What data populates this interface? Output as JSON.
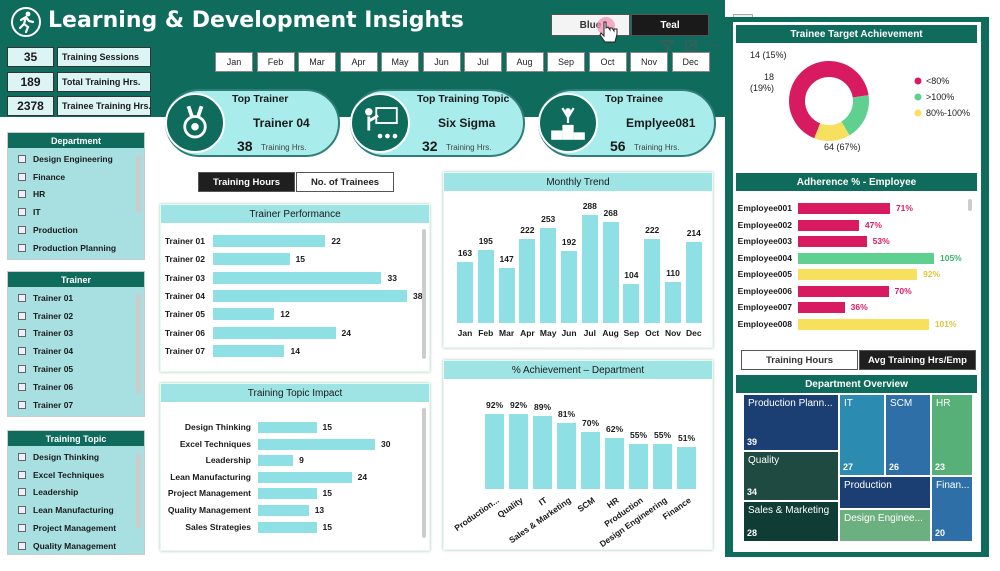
{
  "header": {
    "title": "Learning & Development Insights",
    "kpis": [
      {
        "value": "35",
        "label": "Training Sessions"
      },
      {
        "value": "189",
        "label": "Total Training Hrs."
      },
      {
        "value": "2378",
        "label": "Trainee Training Hrs."
      }
    ],
    "months": [
      "Jan",
      "Feb",
      "Mar",
      "Apr",
      "May",
      "Jun",
      "Jul",
      "Aug",
      "Sep",
      "Oct",
      "Nov",
      "Dec"
    ],
    "theme_buttons": {
      "blue": "Blue",
      "teal": "Teal"
    }
  },
  "top_cards": [
    {
      "title": "Top Trainer",
      "name": "Trainer 04",
      "value": "38",
      "sub": "Training Hrs.",
      "icon": "medal-icon"
    },
    {
      "title": "Top Training Topic",
      "name": "Six Sigma",
      "value": "32",
      "sub": "Training Hrs.",
      "icon": "presentation-icon"
    },
    {
      "title": "Top Trainee",
      "name": "Emplyee081",
      "value": "56",
      "sub": "Training Hrs.",
      "icon": "podium-icon"
    }
  ],
  "slicers": {
    "department": {
      "title": "Department",
      "items": [
        "Design Engineering",
        "Finance",
        "HR",
        "IT",
        "Production",
        "Production Planning"
      ]
    },
    "trainer": {
      "title": "Trainer",
      "items": [
        "Trainer 01",
        "Trainer 02",
        "Trainer 03",
        "Trainer 04",
        "Trainer 05",
        "Trainer 06",
        "Trainer 07"
      ]
    },
    "topic": {
      "title": "Training Topic",
      "items": [
        "Design Thinking",
        "Excel Techniques",
        "Leadership",
        "Lean Manufacturing",
        "Project Management",
        "Quality Management"
      ]
    }
  },
  "toggle_left": {
    "active": "Training Hours",
    "inactive": "No. of Trainees"
  },
  "toggle_right": {
    "inactive": "Training Hours",
    "active": "Avg Training Hrs/Emp"
  },
  "chart_data": [
    {
      "type": "bar",
      "orientation": "horizontal",
      "title": "Trainer Performance",
      "categories": [
        "Trainer 01",
        "Trainer 02",
        "Trainer 03",
        "Trainer 04",
        "Trainer 05",
        "Trainer 06",
        "Trainer 07"
      ],
      "values": [
        22,
        15,
        33,
        38,
        12,
        24,
        14
      ],
      "xlim": [
        0,
        38
      ]
    },
    {
      "type": "bar",
      "orientation": "horizontal",
      "title": "Training Topic Impact",
      "categories": [
        "Design Thinking",
        "Excel Techniques",
        "Leadership",
        "Lean Manufacturing",
        "Project Management",
        "Quality Management",
        "Sales Strategies"
      ],
      "values": [
        15,
        30,
        9,
        24,
        15,
        13,
        15
      ],
      "xlim": [
        0,
        30
      ]
    },
    {
      "type": "bar",
      "title": "Monthly Trend",
      "categories": [
        "Jan",
        "Feb",
        "Mar",
        "Apr",
        "May",
        "Jun",
        "Jul",
        "Aug",
        "Sep",
        "Oct",
        "Nov",
        "Dec"
      ],
      "values": [
        163,
        195,
        147,
        222,
        253,
        192,
        288,
        268,
        104,
        222,
        110,
        214
      ],
      "ylim": [
        0,
        300
      ]
    },
    {
      "type": "bar",
      "title": "% Achievement – Department",
      "categories": [
        "Production...",
        "Quality",
        "IT",
        "Sales & Marketing",
        "SCM",
        "HR",
        "Production",
        "Design Engineering",
        "Finance"
      ],
      "values": [
        92,
        92,
        89,
        81,
        70,
        62,
        55,
        55,
        51
      ],
      "labels": [
        "92%",
        "92%",
        "89%",
        "81%",
        "70%",
        "62%",
        "55%",
        "55%",
        "51%"
      ],
      "ylim": [
        0,
        100
      ]
    },
    {
      "type": "pie",
      "variant": "donut",
      "title": "Trainee Target Achievement",
      "categories": [
        "<80%",
        ">100%",
        "80%-100%"
      ],
      "values": [
        64,
        18,
        14
      ],
      "labels": [
        "64 (67%)",
        "18 (19%)",
        "14 (15%)"
      ],
      "colors": [
        "#d81b60",
        "#5fd08f",
        "#f6e05e"
      ],
      "legend": "right"
    },
    {
      "type": "bar",
      "orientation": "horizontal",
      "title": "Adherence % - Employee",
      "categories": [
        "Employee001",
        "Employee002",
        "Employee003",
        "Employee004",
        "Employee005",
        "Employee006",
        "Employee007",
        "Employee008"
      ],
      "values": [
        71,
        47,
        53,
        105,
        92,
        70,
        36,
        101
      ],
      "labels": [
        "71%",
        "47%",
        "53%",
        "105%",
        "92%",
        "70%",
        "36%",
        "101%"
      ],
      "colors": [
        "#d81b60",
        "#d81b60",
        "#d81b60",
        "#5fd08f",
        "#f6e05e",
        "#d81b60",
        "#d81b60",
        "#f6e05e"
      ],
      "xlim": [
        0,
        105
      ]
    },
    {
      "type": "heatmap",
      "variant": "treemap",
      "title": "Department Overview",
      "categories": [
        "Production Plann...",
        "Quality",
        "Sales & Marketing",
        "IT",
        "SCM",
        "HR",
        "Production",
        "Design Enginee...",
        "Finan..."
      ],
      "values": [
        39,
        34,
        28,
        27,
        26,
        23,
        null,
        null,
        20
      ],
      "labels": [
        "39",
        "34",
        "28",
        "27",
        "26",
        "23",
        "",
        "",
        "20"
      ]
    }
  ],
  "colors": {
    "header": "#0f6b5c",
    "bar": "#8ee0e4",
    "panel_header": "#9ee4e4",
    "slicer": "#a8e0e2"
  }
}
